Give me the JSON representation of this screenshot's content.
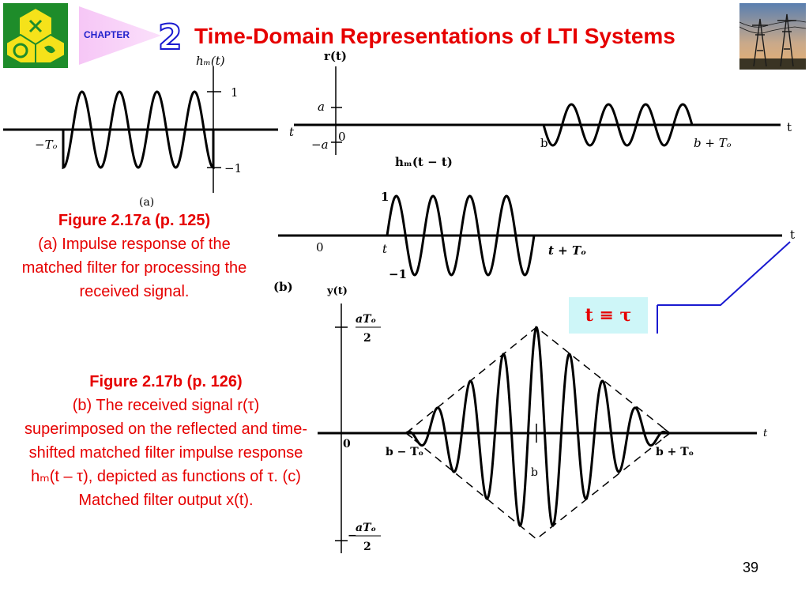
{
  "header": {
    "chapter_label": "CHAPTER",
    "chapter_number": "2",
    "title": "Time-Domain Representations of LTI Systems"
  },
  "figure_a": {
    "y_label": "hₘ(t)",
    "x_label": "t",
    "tick_pos": "1",
    "tick_neg": "−1",
    "left_label": "−Tₒ",
    "panel_label": "(a)"
  },
  "figure_b_top": {
    "y_label": "r(t)",
    "x_label": "t",
    "tick_a": "a",
    "tick_neg_a": "−a",
    "origin": "0",
    "start_label": "b",
    "end_label": "b + Tₒ"
  },
  "figure_b_mid": {
    "y_label": "hₘ(t − t)",
    "tick_pos": "1",
    "tick_neg": "−1",
    "origin": "0",
    "start_label": "t",
    "end_label": "t + Tₒ",
    "x_label": "t",
    "panel_label": "(b)"
  },
  "figure_c": {
    "y_label": "y(t)",
    "tick_top_num": "aTₒ",
    "tick_top_den": "2",
    "tick_bot_num": "aTₒ",
    "tick_bot_den": "2",
    "tick_bot_sign": "−",
    "origin": "0",
    "x_label": "t",
    "left_label": "b − Tₒ",
    "center_label": "b",
    "right_label": "b + Tₒ"
  },
  "caption_a": {
    "head": "Figure 2.17a  (p. 125)",
    "body": "(a) Impulse response of the matched filter for processing the received signal."
  },
  "caption_b": {
    "head": "Figure 2.17b  (p. 126)",
    "line1": "(b) The received signal r(τ) superimposed on the reflected and time-shifted matched filter impulse response hₘ(t – τ), depicted as functions of τ. (c) Matched filter output x(t)."
  },
  "annotation": {
    "tau_box": "t ≡ τ"
  },
  "footer": {
    "page_number": "39"
  },
  "colors": {
    "title": "#e60000",
    "caption": "#e60000",
    "chapter_blue": "#1a1ad0",
    "connector": "#1a1ad0",
    "tau_box_bg": "#cef6f8"
  }
}
